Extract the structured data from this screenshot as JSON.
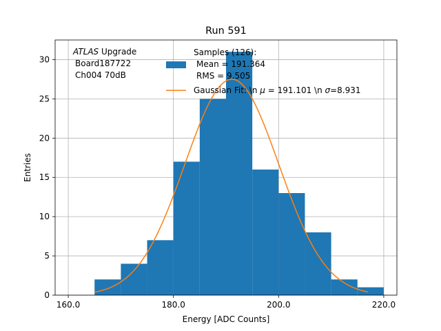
{
  "chart_data": {
    "type": "bar",
    "title": "Run 591",
    "xlabel": "Energy [ADC Counts]",
    "ylabel": "Entries",
    "xlim": [
      157.5,
      222.5
    ],
    "ylim": [
      0,
      32.5
    ],
    "grid": true,
    "xticks": [
      160,
      180,
      200,
      220
    ],
    "xtick_labels": [
      "160.0",
      "180.0",
      "200.0",
      "220.0"
    ],
    "yticks": [
      0,
      5,
      10,
      15,
      20,
      25,
      30
    ],
    "ytick_labels": [
      "0",
      "5",
      "10",
      "15",
      "20",
      "25",
      "30"
    ],
    "bin_edges": [
      165,
      170,
      175,
      180,
      185,
      190,
      195,
      200,
      205,
      210,
      215,
      220
    ],
    "counts": [
      2,
      4,
      7,
      17,
      25,
      31,
      16,
      13,
      8,
      2,
      1
    ],
    "bar_color": "#1f77b4",
    "fit": {
      "type": "gaussian",
      "mu": 191.101,
      "sigma": 8.931,
      "peak": 27.5,
      "x_range": [
        165,
        217
      ],
      "color": "#ff7f0e"
    },
    "annotation": {
      "atlas": "ATLAS",
      "upgrade": " Upgrade",
      "line2": "Board187722",
      "line3": "Ch004 70dB"
    },
    "legend": {
      "location": "top-right",
      "samples_line1": "Samples (126):",
      "samples_line2": "Mean = 191.364",
      "samples_line3": "RMS = 9.505",
      "fit_prefix": "Gaussian Fit: \\n ",
      "fit_mu_symbol": "μ",
      "fit_mid": " = 191.101 \\n ",
      "fit_sigma_symbol": "σ",
      "fit_suffix": "=8.931"
    }
  }
}
